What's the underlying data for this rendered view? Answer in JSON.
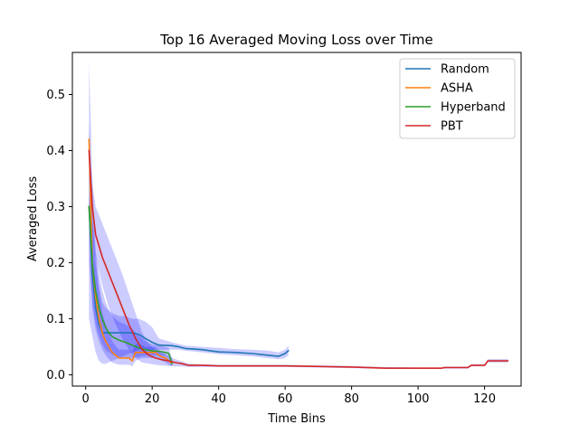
{
  "chart_data": {
    "type": "line",
    "title": "Top 16 Averaged Moving Loss over Time",
    "xlabel": "Time Bins",
    "ylabel": "Averaged Loss",
    "xlim": [
      -4,
      131
    ],
    "ylim": [
      -0.02,
      0.575
    ],
    "xticks": [
      0,
      20,
      40,
      60,
      80,
      100,
      120
    ],
    "yticks": [
      0.0,
      0.1,
      0.2,
      0.3,
      0.4,
      0.5
    ],
    "ytick_labels": [
      "0.0",
      "0.1",
      "0.2",
      "0.3",
      "0.4",
      "0.5"
    ],
    "legend_position": "top-right",
    "band_color": "#0000ff",
    "series": [
      {
        "name": "Random",
        "color": "#1f77b4",
        "x": [
          1,
          2,
          3,
          4,
          5,
          6,
          8,
          10,
          12,
          14,
          16,
          18,
          20,
          22,
          26,
          28,
          30,
          35,
          40,
          45,
          50,
          55,
          58,
          60,
          61
        ],
        "y": [
          0.3,
          0.18,
          0.12,
          0.09,
          0.075,
          0.075,
          0.075,
          0.075,
          0.075,
          0.075,
          0.072,
          0.065,
          0.058,
          0.053,
          0.052,
          0.05,
          0.047,
          0.045,
          0.041,
          0.04,
          0.038,
          0.035,
          0.033,
          0.038,
          0.043
        ],
        "lower": [
          0.1,
          0.07,
          0.04,
          0.025,
          0.02,
          0.02,
          0.025,
          0.03,
          0.035,
          0.04,
          0.045,
          0.045,
          0.045,
          0.045,
          0.045,
          0.045,
          0.043,
          0.04,
          0.037,
          0.035,
          0.033,
          0.03,
          0.028,
          0.03,
          0.035
        ],
        "upper": [
          0.56,
          0.35,
          0.22,
          0.16,
          0.13,
          0.12,
          0.11,
          0.105,
          0.105,
          0.1,
          0.1,
          0.095,
          0.085,
          0.065,
          0.058,
          0.055,
          0.052,
          0.05,
          0.048,
          0.046,
          0.045,
          0.043,
          0.04,
          0.045,
          0.052
        ]
      },
      {
        "name": "ASHA",
        "color": "#ff7f0e",
        "x": [
          1,
          2,
          3,
          4,
          5,
          6,
          7,
          8,
          9,
          10,
          11,
          12,
          13,
          14,
          15,
          16,
          17,
          18,
          19,
          20,
          21,
          22,
          23,
          24,
          25,
          26
        ],
        "y": [
          0.42,
          0.2,
          0.14,
          0.1,
          0.075,
          0.06,
          0.05,
          0.04,
          0.035,
          0.03,
          0.03,
          0.03,
          0.03,
          0.025,
          0.04,
          0.04,
          0.04,
          0.04,
          0.04,
          0.04,
          0.04,
          0.035,
          0.032,
          0.03,
          0.025,
          0.02
        ],
        "lower": [
          0.3,
          0.12,
          0.08,
          0.06,
          0.045,
          0.035,
          0.028,
          0.022,
          0.02,
          0.018,
          0.018,
          0.018,
          0.018,
          0.015,
          0.025,
          0.028,
          0.03,
          0.03,
          0.03,
          0.03,
          0.03,
          0.027,
          0.025,
          0.022,
          0.018,
          0.015
        ],
        "upper": [
          0.45,
          0.28,
          0.2,
          0.15,
          0.11,
          0.09,
          0.075,
          0.06,
          0.052,
          0.045,
          0.045,
          0.045,
          0.045,
          0.04,
          0.055,
          0.055,
          0.052,
          0.05,
          0.05,
          0.05,
          0.05,
          0.045,
          0.04,
          0.038,
          0.032,
          0.028
        ]
      },
      {
        "name": "Hyperband",
        "color": "#2ca02c",
        "x": [
          1,
          2,
          3,
          4,
          5,
          6,
          7,
          8,
          9,
          10,
          12,
          14,
          16,
          18,
          20,
          22,
          24,
          25,
          26
        ],
        "y": [
          0.3,
          0.2,
          0.15,
          0.12,
          0.1,
          0.085,
          0.075,
          0.068,
          0.065,
          0.062,
          0.058,
          0.053,
          0.048,
          0.045,
          0.043,
          0.042,
          0.04,
          0.038,
          0.02
        ],
        "lower": [
          0.2,
          0.13,
          0.09,
          0.07,
          0.055,
          0.045,
          0.04,
          0.036,
          0.034,
          0.032,
          0.03,
          0.03,
          0.032,
          0.034,
          0.035,
          0.035,
          0.034,
          0.032,
          0.015
        ],
        "upper": [
          0.32,
          0.27,
          0.22,
          0.18,
          0.15,
          0.13,
          0.115,
          0.105,
          0.1,
          0.095,
          0.09,
          0.082,
          0.07,
          0.06,
          0.055,
          0.052,
          0.05,
          0.048,
          0.03
        ]
      },
      {
        "name": "PBT",
        "color": "#d62728",
        "x": [
          1,
          2,
          3,
          5,
          7,
          9,
          11,
          13,
          15,
          17,
          19,
          21,
          23,
          25,
          27,
          29,
          31,
          35,
          40,
          50,
          60,
          70,
          80,
          90,
          100,
          107,
          108,
          115,
          116,
          120,
          121,
          125,
          127
        ],
        "y": [
          0.4,
          0.3,
          0.25,
          0.21,
          0.18,
          0.15,
          0.12,
          0.09,
          0.065,
          0.045,
          0.035,
          0.03,
          0.027,
          0.025,
          0.022,
          0.02,
          0.017,
          0.017,
          0.016,
          0.016,
          0.016,
          0.015,
          0.014,
          0.012,
          0.012,
          0.012,
          0.013,
          0.013,
          0.017,
          0.017,
          0.025,
          0.025,
          0.025
        ],
        "lower": [
          0.35,
          0.26,
          0.21,
          0.16,
          0.12,
          0.09,
          0.065,
          0.045,
          0.03,
          0.022,
          0.02,
          0.018,
          0.017,
          0.016,
          0.015,
          0.015,
          0.014,
          0.014,
          0.014,
          0.014,
          0.014,
          0.013,
          0.012,
          0.011,
          0.011,
          0.011,
          0.011,
          0.011,
          0.015,
          0.015,
          0.022,
          0.022,
          0.022
        ],
        "upper": [
          0.42,
          0.34,
          0.3,
          0.27,
          0.24,
          0.21,
          0.18,
          0.145,
          0.11,
          0.075,
          0.055,
          0.045,
          0.038,
          0.033,
          0.028,
          0.024,
          0.02,
          0.019,
          0.018,
          0.018,
          0.018,
          0.017,
          0.016,
          0.014,
          0.013,
          0.013,
          0.015,
          0.015,
          0.019,
          0.019,
          0.028,
          0.028,
          0.028
        ]
      }
    ]
  }
}
